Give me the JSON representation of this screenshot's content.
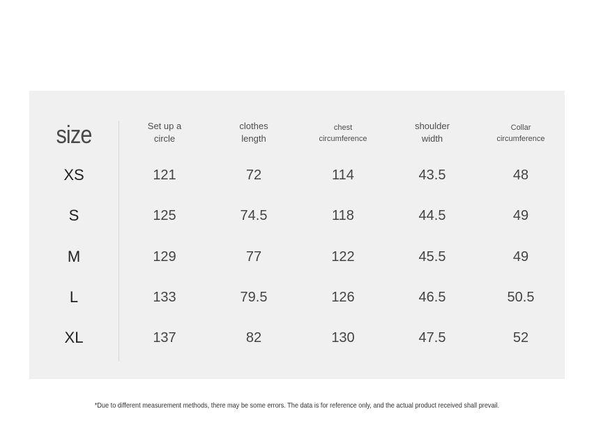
{
  "table": {
    "title": "size",
    "headers": [
      [
        "Set up a",
        "circle"
      ],
      [
        "clothes",
        "length"
      ],
      [
        "chest",
        "circumference"
      ],
      [
        "shoulder",
        "width"
      ],
      [
        "Collar",
        "circumference"
      ]
    ],
    "rows": [
      {
        "size": "XS",
        "values": [
          "121",
          "72",
          "114",
          "43.5",
          "48"
        ]
      },
      {
        "size": "S",
        "values": [
          "125",
          "74.5",
          "118",
          "44.5",
          "49"
        ]
      },
      {
        "size": "M",
        "values": [
          "129",
          "77",
          "122",
          "45.5",
          "49"
        ]
      },
      {
        "size": "L",
        "values": [
          "133",
          "79.5",
          "126",
          "46.5",
          "50.5"
        ]
      },
      {
        "size": "XL",
        "values": [
          "137",
          "82",
          "130",
          "47.5",
          "52"
        ]
      }
    ]
  },
  "note": "*Due to different measurement methods, there may be some errors. The data is for reference only, and the actual product received shall prevail."
}
